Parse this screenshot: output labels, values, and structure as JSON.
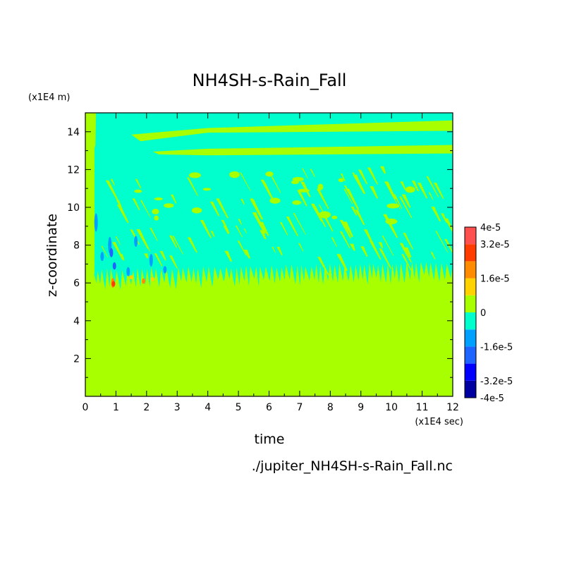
{
  "chart_data": {
    "type": "heatmap",
    "title": "NH4SH-s-Rain_Fall",
    "xlabel": "time",
    "ylabel": "z-coordinate",
    "x_unit": "(x1E4 sec)",
    "y_unit": "(x1E4 m)",
    "xlim": [
      0,
      12
    ],
    "ylim": [
      0,
      15
    ],
    "xticks": [
      "0",
      "1",
      "2",
      "3",
      "4",
      "5",
      "6",
      "7",
      "8",
      "9",
      "10",
      "11",
      "12"
    ],
    "yticks": [
      "2",
      "4",
      "6",
      "8",
      "10",
      "12",
      "14"
    ],
    "source_file": "./jupiter_NH4SH-s-Rain_Fall.nc",
    "colorbar": {
      "range": [
        -4e-05,
        4e-05
      ],
      "labels": [
        "4e-5",
        "3.2e-5",
        "1.6e-5",
        "0",
        "-1.6e-5",
        "-3.2e-5",
        "-4e-5"
      ],
      "label_values": [
        4e-05,
        3.2e-05,
        1.6e-05,
        0,
        -1.6e-05,
        -3.2e-05,
        -4e-05
      ],
      "levels": [
        -4e-05,
        -3.2e-05,
        -2.4e-05,
        -1.6e-05,
        -8e-06,
        0,
        8e-06,
        1.6e-05,
        2.4e-05,
        3.2e-05,
        4e-05
      ],
      "colors": [
        "#0000a0",
        "#0000ff",
        "#1e64ff",
        "#00a0ff",
        "#00ffcc",
        "#a8ff00",
        "#ffd200",
        "#ff8c00",
        "#ff3c00",
        "#ff5050"
      ]
    },
    "regions": [
      {
        "name": "lower layer",
        "z_from": 0,
        "z_to": 6.3,
        "level": "0",
        "color": "#a8ff00"
      },
      {
        "name": "middle layer",
        "z_from": 6.3,
        "z_to": 15,
        "level": "-8e-6 to 0",
        "color": "#00ffcc"
      },
      {
        "name": "upper band",
        "z_from": 14.1,
        "z_to": 14.6,
        "level": "0",
        "color": "#a8ff00"
      },
      {
        "name": "second band",
        "z_from": 12.8,
        "z_to": 13.3,
        "level": "0",
        "color": "#a8ff00"
      },
      {
        "name": "early column",
        "t_from": 0,
        "t_to": 0.3,
        "level": "0",
        "color": "#a8ff00"
      }
    ]
  }
}
